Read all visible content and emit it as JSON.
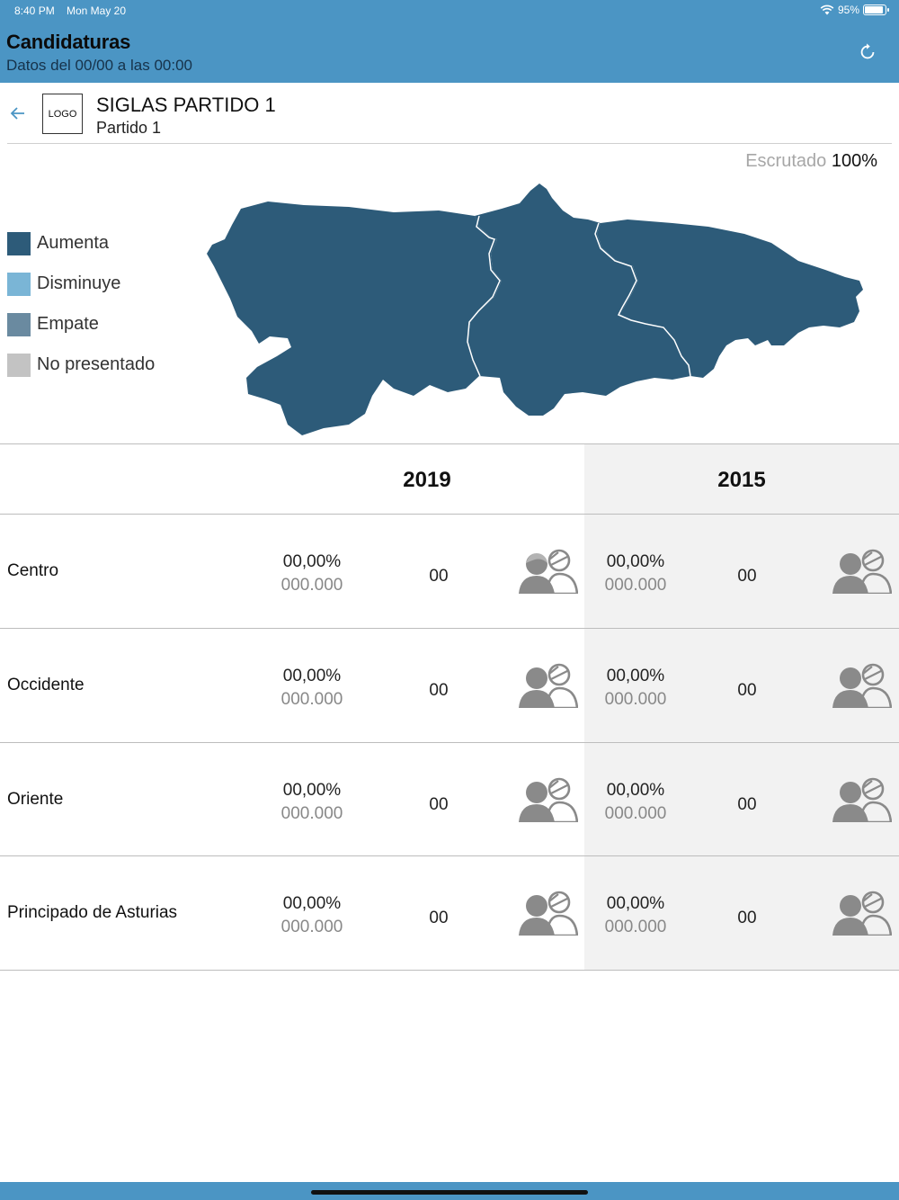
{
  "status_bar": {
    "time": "8:40 PM",
    "date": "Mon May 20",
    "battery": "95%"
  },
  "header": {
    "title": "Candidaturas",
    "subtitle": "Datos del 00/00 a las 00:00",
    "refresh_icon": "refresh-icon"
  },
  "party": {
    "logo_text": "LOGO",
    "abbreviation": "SIGLAS PARTIDO 1",
    "name": "Partido 1",
    "back_icon": "arrow-left-icon"
  },
  "scrutiny": {
    "label": "Escrutado",
    "value": "100%"
  },
  "legend": [
    {
      "label": "Aumenta",
      "color": "#2d5b79"
    },
    {
      "label": "Disminuye",
      "color": "#7ab5d6"
    },
    {
      "label": "Empate",
      "color": "#6a8aa0"
    },
    {
      "label": "No presentado",
      "color": "#c3c3c3"
    }
  ],
  "map": {
    "region_color": "#2d5b79",
    "border_color": "#ffffff"
  },
  "table": {
    "years": [
      "2019",
      "2015"
    ],
    "rows": [
      {
        "label": "Centro",
        "y2019": {
          "percent": "00,00%",
          "votes": "000.000",
          "seats": "00"
        },
        "y2015": {
          "percent": "00,00%",
          "votes": "000.000",
          "seats": "00"
        }
      },
      {
        "label": "Occidente",
        "y2019": {
          "percent": "00,00%",
          "votes": "000.000",
          "seats": "00"
        },
        "y2015": {
          "percent": "00,00%",
          "votes": "000.000",
          "seats": "00"
        }
      },
      {
        "label": "Oriente",
        "y2019": {
          "percent": "00,00%",
          "votes": "000.000",
          "seats": "00"
        },
        "y2015": {
          "percent": "00,00%",
          "votes": "000.000",
          "seats": "00"
        }
      },
      {
        "label": "Principado de Asturias",
        "y2019": {
          "percent": "00,00%",
          "votes": "000.000",
          "seats": "00"
        },
        "y2015": {
          "percent": "00,00%",
          "votes": "000.000",
          "seats": "00"
        }
      }
    ]
  },
  "colors": {
    "brand": "#4b95c4",
    "shade": "#f2f2f2",
    "icon_gray": "#8a8a8a"
  }
}
